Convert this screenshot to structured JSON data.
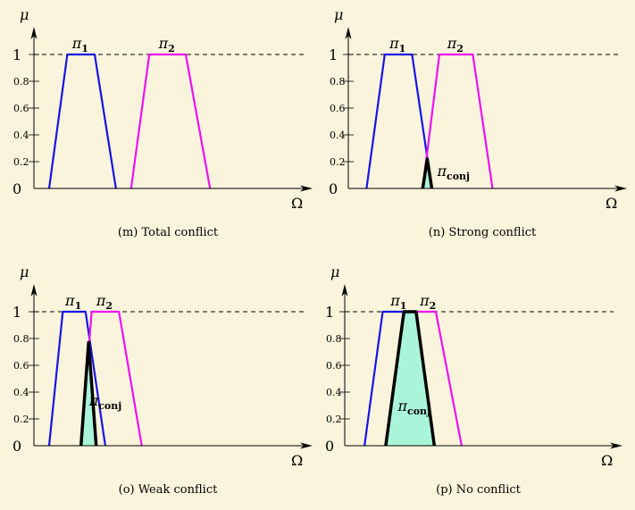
{
  "colors": {
    "background": "#faf4dc",
    "pi1": "#1414e6",
    "pi2": "#ee11ee",
    "conj_fill": "#aaf5da",
    "conj_stroke": "#000000",
    "axis": "#000000"
  },
  "y_axis_label": "μ",
  "x_axis_label": "Ω",
  "y_ticks": [
    "0",
    "0.2",
    "0.4",
    "0.6",
    "0.8",
    "1"
  ],
  "y_tick_values": [
    0,
    0.2,
    0.4,
    0.6,
    0.8,
    1
  ],
  "pi_letter": "π",
  "pi1_sub": "1",
  "pi2_sub": "2",
  "conj_sub": "conj",
  "panels": [
    {
      "id": "m",
      "caption": "(m)  Total conflict",
      "pi1": [
        [
          0.5,
          0
        ],
        [
          1.1,
          1
        ],
        [
          2.0,
          1
        ],
        [
          2.7,
          0
        ]
      ],
      "pi2": [
        [
          3.2,
          0
        ],
        [
          3.8,
          1
        ],
        [
          5.0,
          1
        ],
        [
          5.8,
          0
        ]
      ],
      "conj": null
    },
    {
      "id": "n",
      "caption": "(n)  Strong conflict",
      "pi1": [
        [
          0.6,
          0
        ],
        [
          1.2,
          1
        ],
        [
          2.1,
          1
        ],
        [
          2.75,
          0
        ]
      ],
      "pi2": [
        [
          2.45,
          0
        ],
        [
          3.0,
          1
        ],
        [
          4.1,
          1
        ],
        [
          4.75,
          0
        ]
      ],
      "conj": [
        [
          2.45,
          0
        ],
        [
          2.6,
          0.22
        ],
        [
          2.75,
          0
        ]
      ]
    },
    {
      "id": "o",
      "caption": "(o)  Weak conflict",
      "pi1": [
        [
          0.5,
          0
        ],
        [
          0.95,
          1
        ],
        [
          1.7,
          1
        ],
        [
          2.35,
          0
        ]
      ],
      "pi2": [
        [
          1.55,
          0
        ],
        [
          1.9,
          1
        ],
        [
          2.8,
          1
        ],
        [
          3.55,
          0
        ]
      ],
      "conj": [
        [
          1.55,
          0
        ],
        [
          1.8,
          0.77
        ],
        [
          2.05,
          0
        ]
      ]
    },
    {
      "id": "p",
      "caption": "(p)  No conflict",
      "pi1": [
        [
          0.65,
          0
        ],
        [
          1.25,
          1
        ],
        [
          2.35,
          1
        ],
        [
          2.95,
          0
        ]
      ],
      "pi2": [
        [
          1.35,
          0
        ],
        [
          1.95,
          1
        ],
        [
          3.0,
          1
        ],
        [
          3.85,
          0
        ]
      ],
      "conj": [
        [
          1.35,
          0
        ],
        [
          1.95,
          1
        ],
        [
          2.35,
          1
        ],
        [
          2.95,
          0
        ]
      ]
    }
  ]
}
